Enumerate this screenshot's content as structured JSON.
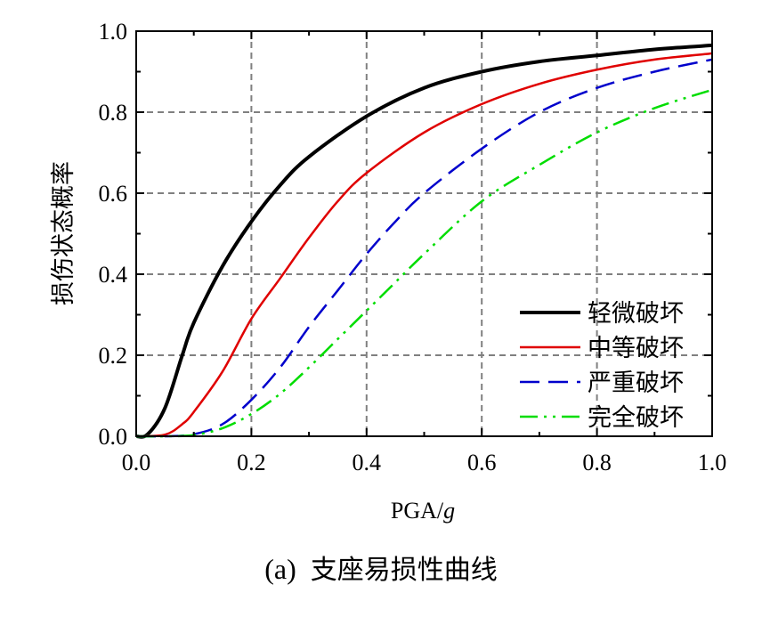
{
  "caption": {
    "label": "(a)",
    "text": "支座易损性曲线"
  },
  "chart_data": {
    "type": "line",
    "title": "(a) 支座易损性曲线",
    "xlabel_main": "PGA/",
    "xlabel_italic": "g",
    "ylabel": "损伤状态概率",
    "xlim": [
      0.0,
      1.0
    ],
    "ylim": [
      0.0,
      1.0
    ],
    "xticks": [
      "0.0",
      "0.2",
      "0.4",
      "0.6",
      "0.8",
      "1.0"
    ],
    "yticks": [
      "0.0",
      "0.2",
      "0.4",
      "0.6",
      "0.8",
      "1.0"
    ],
    "grid": true,
    "legend_position": "bottom-right",
    "series": [
      {
        "name": "轻微破坏",
        "color": "#000000",
        "style": "solid",
        "x": [
          0.0,
          0.02,
          0.05,
          0.08,
          0.1,
          0.15,
          0.2,
          0.25,
          0.3,
          0.4,
          0.5,
          0.6,
          0.7,
          0.8,
          0.9,
          1.0
        ],
        "y": [
          0.0,
          0.005,
          0.07,
          0.2,
          0.28,
          0.42,
          0.53,
          0.62,
          0.69,
          0.79,
          0.86,
          0.9,
          0.925,
          0.94,
          0.955,
          0.965
        ]
      },
      {
        "name": "中等破坏",
        "color": "#e00000",
        "style": "solid",
        "x": [
          0.0,
          0.05,
          0.08,
          0.1,
          0.15,
          0.2,
          0.25,
          0.3,
          0.35,
          0.4,
          0.5,
          0.6,
          0.7,
          0.8,
          0.9,
          1.0
        ],
        "y": [
          0.0,
          0.004,
          0.03,
          0.06,
          0.16,
          0.29,
          0.39,
          0.49,
          0.58,
          0.65,
          0.75,
          0.82,
          0.87,
          0.905,
          0.93,
          0.945
        ]
      },
      {
        "name": "严重破坏",
        "color": "#0000cc",
        "style": "dash",
        "x": [
          0.0,
          0.05,
          0.1,
          0.15,
          0.2,
          0.25,
          0.3,
          0.35,
          0.4,
          0.45,
          0.5,
          0.6,
          0.7,
          0.8,
          0.9,
          1.0
        ],
        "y": [
          0.0,
          0.0,
          0.005,
          0.03,
          0.09,
          0.17,
          0.27,
          0.36,
          0.45,
          0.53,
          0.6,
          0.71,
          0.8,
          0.86,
          0.9,
          0.93
        ]
      },
      {
        "name": "完全破坏",
        "color": "#00dd00",
        "style": "dashdotdot",
        "x": [
          0.0,
          0.05,
          0.1,
          0.15,
          0.2,
          0.25,
          0.3,
          0.35,
          0.4,
          0.45,
          0.5,
          0.6,
          0.7,
          0.8,
          0.9,
          1.0
        ],
        "y": [
          0.0,
          0.0,
          0.003,
          0.02,
          0.055,
          0.105,
          0.17,
          0.24,
          0.31,
          0.38,
          0.45,
          0.58,
          0.67,
          0.75,
          0.81,
          0.855
        ]
      }
    ]
  }
}
